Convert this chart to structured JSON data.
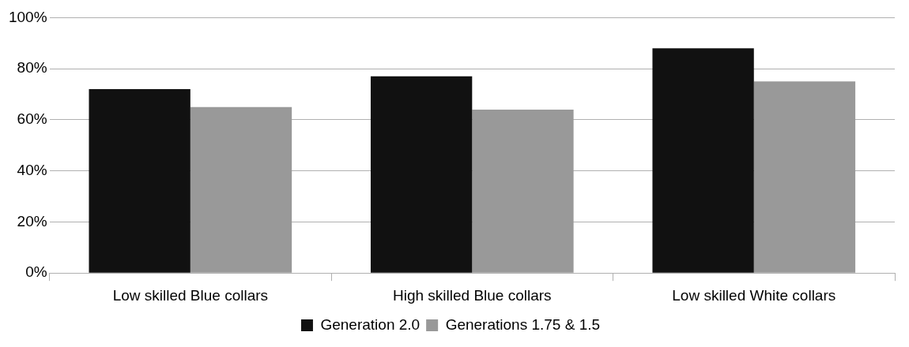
{
  "chart_data": {
    "type": "bar",
    "categories": [
      "Low skilled Blue collars",
      "High skilled Blue collars",
      "Low skilled White collars"
    ],
    "series": [
      {
        "name": "Generation 2.0",
        "color": "#111111",
        "values": [
          72,
          77,
          88
        ]
      },
      {
        "name": "Generations 1.75 & 1.5",
        "color": "#999999",
        "values": [
          65,
          64,
          75
        ]
      }
    ],
    "ylim": [
      0,
      100
    ],
    "yticks": [
      {
        "value": 0,
        "label": "0%"
      },
      {
        "value": 20,
        "label": "20%"
      },
      {
        "value": 40,
        "label": "40%"
      },
      {
        "value": 60,
        "label": "60%"
      },
      {
        "value": 80,
        "label": "80%"
      },
      {
        "value": 100,
        "label": "100%"
      }
    ],
    "grid": "y",
    "legend": "bottom"
  }
}
